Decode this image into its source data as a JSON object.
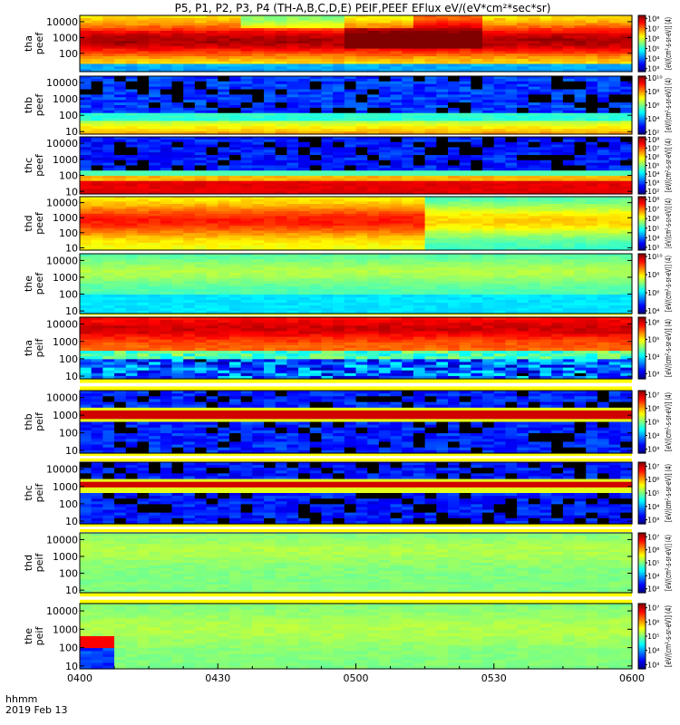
{
  "title": "P5, P1, P2, P3, P4 (TH-A,B,C,D,E) PEIF,PEEF EFlux eV/(eV*cm²*sec*sr)",
  "footer": {
    "time_label": "hhmm",
    "date_label": "2019 Feb 13"
  },
  "chart_data": {
    "type": "heatmap",
    "x_ticks": [
      "0400",
      "0430",
      "0500",
      "0530",
      "0600"
    ],
    "x_range": [
      "0400",
      "0600"
    ],
    "y_scale": "log",
    "ylim": [
      7,
      25000
    ],
    "y_ticks": [
      "10000",
      "1000",
      "100",
      "10"
    ],
    "color_scale": "jet",
    "panels": [
      {
        "ylabel": [
          "thа",
          "peef"
        ],
        "y_ticks": [
          "10000",
          "1000",
          "100"
        ],
        "colorbar_label": "[eV/(cm²-s-sr-eV)] (4)",
        "colorbar_ticks": [
          "10⁸",
          "10⁷",
          "10⁶",
          "10⁵",
          "10⁴",
          "10³"
        ]
      },
      {
        "ylabel": [
          "thb",
          "peef"
        ],
        "y_ticks": [
          "10000",
          "1000",
          "100",
          "10"
        ],
        "colorbar_label": "[eV/(cm²-s-sr-eV)] (4)",
        "colorbar_ticks": [
          "10¹⁰",
          "10⁸",
          "10⁶",
          "10⁴",
          "10²"
        ]
      },
      {
        "ylabel": [
          "thc",
          "peef"
        ],
        "y_ticks": [
          "10000",
          "1000",
          "100",
          "10"
        ],
        "colorbar_label": "[eV/(cm²-s-sr-eV)] (4)",
        "colorbar_ticks": [
          "10⁸",
          "10⁷",
          "10⁶",
          "10⁵",
          "10⁴",
          "10³",
          "10²"
        ]
      },
      {
        "ylabel": [
          "thd",
          "peef"
        ],
        "y_ticks": [
          "10000",
          "1000",
          "100",
          "10"
        ],
        "colorbar_label": "[eV/(cm²-s-sr-eV)] (4)",
        "colorbar_ticks": [
          "10⁸",
          "10⁷",
          "10⁶",
          "10⁵",
          "10⁴",
          "10³"
        ]
      },
      {
        "ylabel": [
          "the",
          "peef"
        ],
        "y_ticks": [
          "10000",
          "1000",
          "100",
          "10"
        ],
        "colorbar_label": "[eV/(cm²-s-sr-eV)] (4)",
        "colorbar_ticks": [
          "10¹⁰",
          "10⁸",
          "10⁶",
          "10⁴"
        ]
      },
      {
        "ylabel": [
          "tha",
          "peif"
        ],
        "y_ticks": [
          "10000",
          "1000",
          "100",
          "10"
        ],
        "colorbar_label": "[eV/(cm²-s-sr-eV)] (4)",
        "colorbar_ticks": [
          "10⁶",
          "10⁵",
          "10⁴",
          "10³"
        ]
      },
      {
        "ylabel": [
          "thb",
          "peif"
        ],
        "y_ticks": [
          "10000",
          "1000",
          "100",
          "10"
        ],
        "colorbar_label": "[eV/(cm²-s-sr-eV)] (4)",
        "colorbar_ticks": [
          "10⁷",
          "10⁶",
          "10⁵",
          "10⁴",
          "10³"
        ]
      },
      {
        "ylabel": [
          "thc",
          "peif"
        ],
        "y_ticks": [
          "10000",
          "1000",
          "100",
          "10"
        ],
        "colorbar_label": "[eV/(cm²-s-sr-eV)] (4)",
        "colorbar_ticks": [
          "10⁷",
          "10⁶",
          "10⁵",
          "10⁴",
          "10³"
        ]
      },
      {
        "ylabel": [
          "thd",
          "peif"
        ],
        "y_ticks": [
          "10000",
          "1000",
          "100",
          "10"
        ],
        "colorbar_label": "[eV/(cm²-s-sr-eV)] (4)",
        "colorbar_ticks": [
          "10⁷",
          "10⁶",
          "10⁵",
          "10⁴",
          "10³"
        ]
      },
      {
        "ylabel": [
          "the",
          "peif"
        ],
        "y_ticks": [
          "10000",
          "1000",
          "100",
          "10"
        ],
        "colorbar_label": "[eV/(cm²-s-sr-eV)] (4)",
        "colorbar_ticks": [
          "10⁷",
          "10⁶",
          "10⁵",
          "10⁴",
          "10³"
        ]
      }
    ]
  }
}
